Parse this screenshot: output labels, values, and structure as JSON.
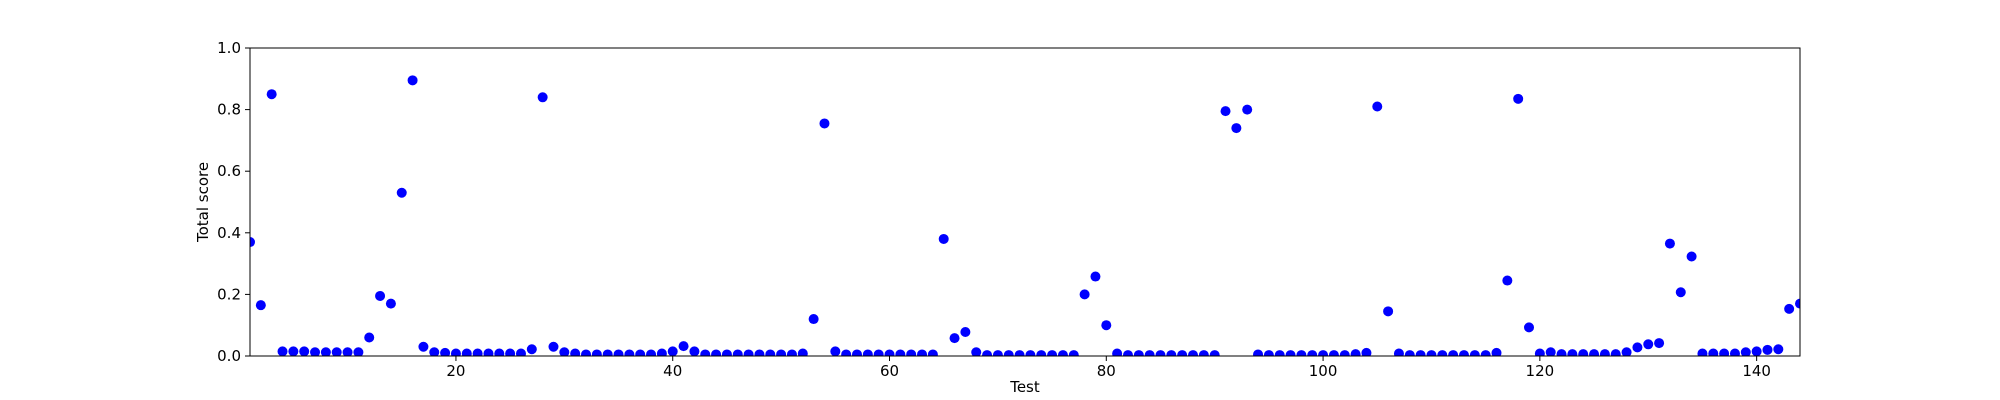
{
  "chart_data": {
    "type": "scatter",
    "x_label": "Test",
    "y_label": "Total score",
    "xlim": [
      1,
      144
    ],
    "ylim": [
      0,
      1
    ],
    "xticks": [
      20,
      40,
      60,
      80,
      100,
      120,
      140
    ],
    "yticks": [
      {
        "value": 0,
        "label": "0.0"
      },
      0.2,
      0.4,
      0.6,
      0.8,
      {
        "value": 1,
        "label": "1.0"
      }
    ],
    "series": [
      {
        "color": "#0000ff",
        "x": [
          1,
          2,
          3,
          4,
          5,
          6,
          7,
          8,
          9,
          10,
          11,
          12,
          13,
          14,
          15,
          16,
          17,
          18,
          19,
          20,
          21,
          22,
          23,
          24,
          25,
          26,
          27,
          28,
          29,
          30,
          31,
          32,
          33,
          34,
          35,
          36,
          37,
          38,
          39,
          40,
          41,
          42,
          43,
          44,
          45,
          46,
          47,
          48,
          49,
          50,
          51,
          52,
          53,
          54,
          55,
          56,
          57,
          58,
          59,
          60,
          61,
          62,
          63,
          64,
          65,
          66,
          67,
          68,
          69,
          70,
          71,
          72,
          73,
          74,
          75,
          76,
          77,
          78,
          79,
          80,
          81,
          82,
          83,
          84,
          85,
          86,
          87,
          88,
          89,
          90,
          91,
          92,
          93,
          94,
          95,
          96,
          97,
          98,
          99,
          100,
          101,
          102,
          103,
          104,
          105,
          106,
          107,
          108,
          109,
          110,
          111,
          112,
          113,
          114,
          115,
          116,
          117,
          118,
          119,
          120,
          121,
          122,
          123,
          124,
          125,
          126,
          127,
          128,
          129,
          130,
          131,
          132,
          133,
          134,
          135,
          136,
          137,
          138,
          139,
          140,
          141,
          142,
          143,
          144
        ],
        "values": [
          0.37,
          0.165,
          0.85,
          0.015,
          0.015,
          0.015,
          0.012,
          0.012,
          0.012,
          0.012,
          0.012,
          0.06,
          0.195,
          0.17,
          0.53,
          0.895,
          0.03,
          0.012,
          0.01,
          0.008,
          0.008,
          0.008,
          0.008,
          0.008,
          0.008,
          0.008,
          0.022,
          0.84,
          0.03,
          0.012,
          0.008,
          0.005,
          0.005,
          0.005,
          0.005,
          0.005,
          0.005,
          0.005,
          0.008,
          0.015,
          0.032,
          0.015,
          0.005,
          0.005,
          0.005,
          0.005,
          0.005,
          0.005,
          0.005,
          0.005,
          0.005,
          0.008,
          0.12,
          0.755,
          0.015,
          0.005,
          0.005,
          0.005,
          0.005,
          0.005,
          0.005,
          0.005,
          0.005,
          0.005,
          0.38,
          0.058,
          0.078,
          0.012,
          0.003,
          0.003,
          0.003,
          0.003,
          0.003,
          0.003,
          0.003,
          0.003,
          0.003,
          0.2,
          0.258,
          0.1,
          0.008,
          0.003,
          0.003,
          0.003,
          0.003,
          0.003,
          0.003,
          0.003,
          0.003,
          0.003,
          0.795,
          0.74,
          0.8,
          0.005,
          0.003,
          0.003,
          0.003,
          0.003,
          0.003,
          0.003,
          0.003,
          0.003,
          0.006,
          0.01,
          0.81,
          0.145,
          0.008,
          0.003,
          0.003,
          0.003,
          0.003,
          0.003,
          0.003,
          0.003,
          0.003,
          0.01,
          0.245,
          0.835,
          0.093,
          0.008,
          0.012,
          0.006,
          0.006,
          0.006,
          0.006,
          0.006,
          0.006,
          0.012,
          0.028,
          0.038,
          0.042,
          0.365,
          0.207,
          0.323,
          0.008,
          0.008,
          0.008,
          0.008,
          0.012,
          0.015,
          0.02,
          0.022,
          0.153,
          0.17
        ]
      }
    ]
  }
}
